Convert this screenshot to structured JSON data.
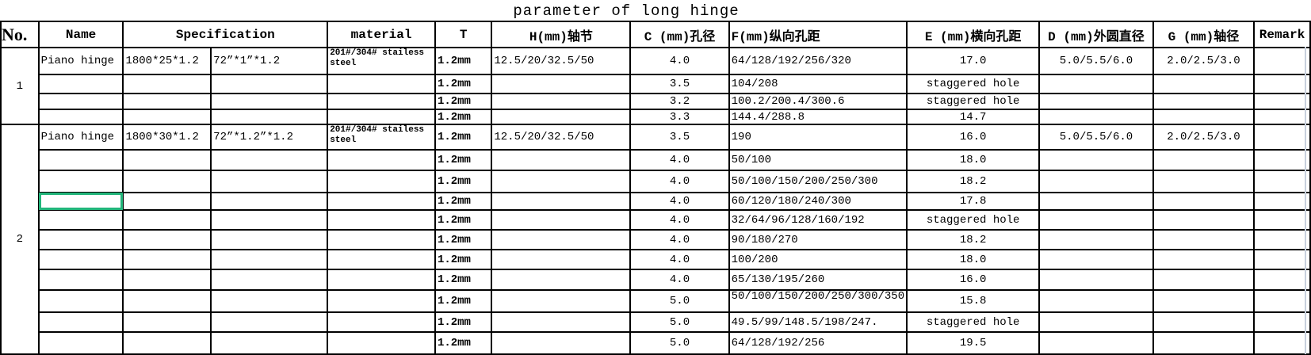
{
  "title": "parameter of long  hinge",
  "headers": [
    "No.",
    "Name",
    "Specification",
    "material",
    "T",
    "H(mm)轴节",
    "C (mm)孔径",
    "F(mm)纵向孔距",
    "E (mm)横向孔距",
    "D (mm)外圆直径",
    "G (mm)轴径",
    "Remark"
  ],
  "groups": [
    {
      "no": "1",
      "rows": [
        {
          "name": "Piano hinge",
          "spec_mm": "1800*25*1.2",
          "spec_in": "72”*1”*1.2",
          "material": "201#/304# stailess steel",
          "T": "1.2mm",
          "H": "12.5/20/32.5/50",
          "C": "4.0",
          "F": "64/128/192/256/320",
          "E": "17.0",
          "D": "5.0/5.5/6.0",
          "G": "2.0/2.5/3.0",
          "remark": ""
        },
        {
          "name": "",
          "spec_mm": "",
          "spec_in": "",
          "material": "",
          "T": "1.2mm",
          "H": "",
          "C": "3.5",
          "F": "104/208",
          "E": "staggered hole",
          "D": "",
          "G": "",
          "remark": ""
        },
        {
          "name": "",
          "spec_mm": "",
          "spec_in": "",
          "material": "",
          "T": "1.2mm",
          "H": "",
          "C": "3.2",
          "F": "100.2/200.4/300.6",
          "E": "staggered hole",
          "D": "",
          "G": "",
          "remark": ""
        },
        {
          "name": "",
          "spec_mm": "",
          "spec_in": "",
          "material": "",
          "T": "1.2mm",
          "H": "",
          "C": "3.3",
          "F": "144.4/288.8",
          "E": "14.7",
          "D": "",
          "G": "",
          "remark": ""
        }
      ]
    },
    {
      "no": "2",
      "rows": [
        {
          "name": "Piano hinge",
          "spec_mm": "1800*30*1.2",
          "spec_in": "72”*1.2”*1.2",
          "material": "201#/304# stailess steel",
          "T": "1.2mm",
          "H": "12.5/20/32.5/50",
          "C": "3.5",
          "F": "190",
          "E": "16.0",
          "D": "5.0/5.5/6.0",
          "G": "2.0/2.5/3.0",
          "remark": ""
        },
        {
          "name": "",
          "spec_mm": "",
          "spec_in": "",
          "material": "",
          "T": "1.2mm",
          "H": "",
          "C": "4.0",
          "F": "50/100",
          "E": "18.0",
          "D": "",
          "G": "",
          "remark": ""
        },
        {
          "name": "",
          "spec_mm": "",
          "spec_in": "",
          "material": "",
          "T": "1.2mm",
          "H": "",
          "C": "4.0",
          "F": "50/100/150/200/250/300",
          "E": "18.2",
          "D": "",
          "G": "",
          "remark": ""
        },
        {
          "name": "",
          "spec_mm": "",
          "spec_in": "",
          "material": "",
          "T": "1.2mm",
          "H": "",
          "C": "4.0",
          "F": "60/120/180/240/300",
          "E": "17.8",
          "D": "",
          "G": "",
          "remark": ""
        },
        {
          "name": "",
          "spec_mm": "",
          "spec_in": "",
          "material": "",
          "T": "1.2mm",
          "H": "",
          "C": "4.0",
          "F": "32/64/96/128/160/192",
          "E": "staggered hole",
          "D": "",
          "G": "",
          "remark": ""
        },
        {
          "name": "",
          "spec_mm": "",
          "spec_in": "",
          "material": "",
          "T": "1.2mm",
          "H": "",
          "C": "4.0",
          "F": "90/180/270",
          "E": "18.2",
          "D": "",
          "G": "",
          "remark": ""
        },
        {
          "name": "",
          "spec_mm": "",
          "spec_in": "",
          "material": "",
          "T": "1.2mm",
          "H": "",
          "C": "4.0",
          "F": "100/200",
          "E": "18.0",
          "D": "",
          "G": "",
          "remark": ""
        },
        {
          "name": "",
          "spec_mm": "",
          "spec_in": "",
          "material": "",
          "T": "1.2mm",
          "H": "",
          "C": "4.0",
          "F": "65/130/195/260",
          "E": "16.0",
          "D": "",
          "G": "",
          "remark": ""
        },
        {
          "name": "",
          "spec_mm": "",
          "spec_in": "",
          "material": "",
          "T": "1.2mm",
          "H": "",
          "C": "5.0",
          "F": "50/100/150/200/250/300/350",
          "E": "15.8",
          "D": "",
          "G": "",
          "remark": ""
        },
        {
          "name": "",
          "spec_mm": "",
          "spec_in": "",
          "material": "",
          "T": "1.2mm",
          "H": "",
          "C": "5.0",
          "F": "49.5/99/148.5/198/247.",
          "E": "staggered hole",
          "D": "",
          "G": "",
          "remark": ""
        },
        {
          "name": "",
          "spec_mm": "",
          "spec_in": "",
          "material": "",
          "T": "1.2mm",
          "H": "",
          "C": "5.0",
          "F": "64/128/192/256",
          "E": "19.5",
          "D": "",
          "G": "",
          "remark": ""
        }
      ]
    }
  ],
  "selection_color": "#21b57a"
}
